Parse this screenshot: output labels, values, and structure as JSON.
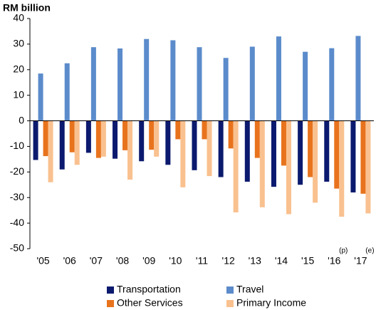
{
  "chart_data": {
    "type": "bar",
    "y_axis_label": "RM billion",
    "categories": [
      "'05",
      "'06",
      "'07",
      "'08",
      "'09",
      "'10",
      "'11",
      "'12",
      "'13",
      "'14",
      "'15",
      "'16",
      "'17"
    ],
    "series": [
      {
        "name": "Transportation",
        "color": "#0b1a6e",
        "values": [
          -15.3,
          -19,
          -12.5,
          -14.8,
          -15.8,
          -17.2,
          -19.3,
          -22,
          -23.8,
          -25.8,
          -25,
          -23.8,
          -28
        ]
      },
      {
        "name": "Travel",
        "color": "#5b8bcb",
        "values": [
          18.5,
          22.5,
          28.8,
          28.3,
          32,
          31.5,
          28.8,
          24.6,
          29,
          33,
          27,
          28.4,
          33.2
        ]
      },
      {
        "name": "Other Services",
        "color": "#e8731d",
        "values": [
          -13.8,
          -12.3,
          -14.5,
          -11.5,
          -11.3,
          -7.2,
          -7.2,
          -10.8,
          -14.5,
          -17.5,
          -22,
          -26.5,
          -28.5
        ]
      },
      {
        "name": "Primary Income",
        "color": "#f9c18f",
        "values": [
          -24,
          -17.2,
          -14,
          -23,
          -14,
          -26,
          -21.6,
          -35.8,
          -33.8,
          -36.5,
          -32,
          -37.5,
          -36.2
        ]
      }
    ],
    "annotations": [
      {
        "text": "(p)",
        "category": "'16"
      },
      {
        "text": "(e)",
        "category": "'17"
      }
    ],
    "ylim": [
      -50,
      40
    ],
    "yticks": [
      -50,
      -40,
      -30,
      -20,
      -10,
      0,
      10,
      20,
      30,
      40
    ],
    "grid": false
  }
}
